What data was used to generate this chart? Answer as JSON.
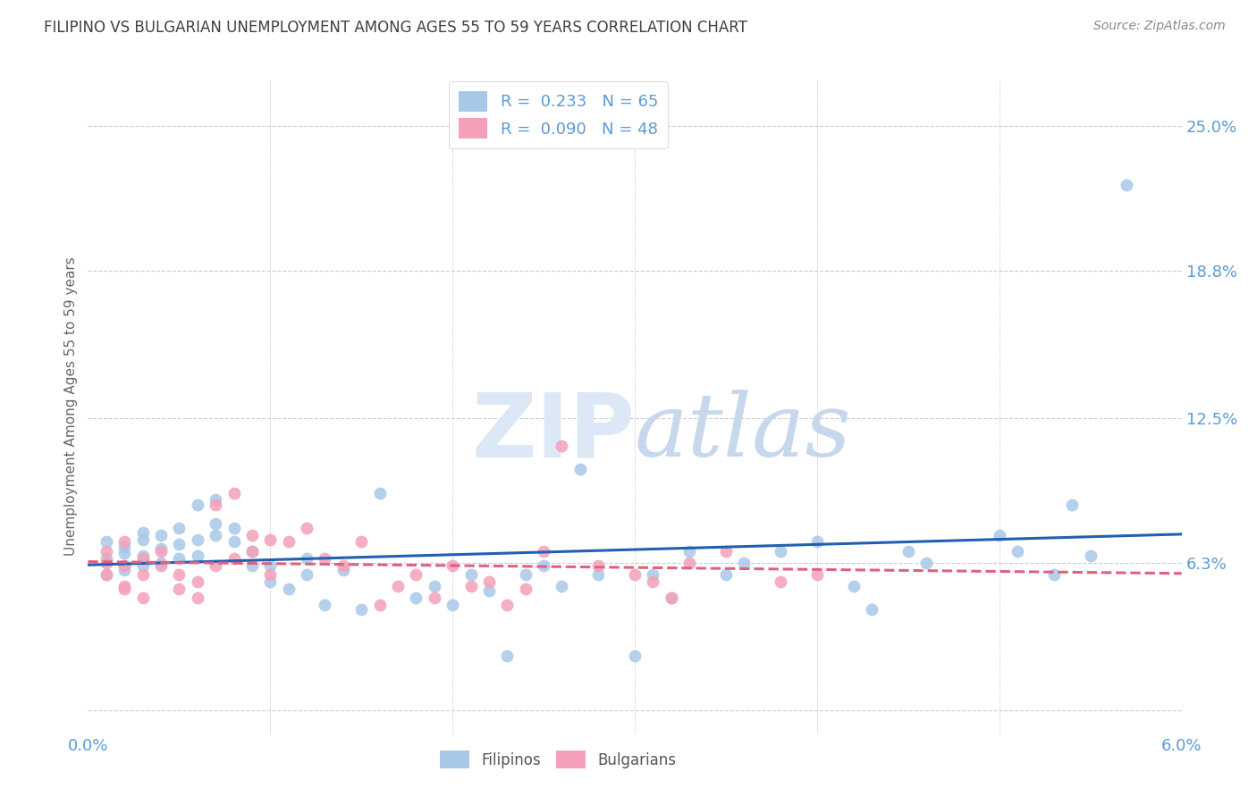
{
  "title": "FILIPINO VS BULGARIAN UNEMPLOYMENT AMONG AGES 55 TO 59 YEARS CORRELATION CHART",
  "source": "Source: ZipAtlas.com",
  "ylabel": "Unemployment Among Ages 55 to 59 years",
  "xmin": 0.0,
  "xmax": 0.06,
  "ymin": -0.01,
  "ymax": 0.27,
  "yticks": [
    0.0,
    0.063,
    0.125,
    0.188,
    0.25
  ],
  "ytick_labels": [
    "",
    "6.3%",
    "12.5%",
    "18.8%",
    "25.0%"
  ],
  "xticks": [
    0.0,
    0.01,
    0.02,
    0.03,
    0.04,
    0.05,
    0.06
  ],
  "xtick_labels": [
    "0.0%",
    "",
    "",
    "",
    "",
    "",
    "6.0%"
  ],
  "filipino_color": "#a8c8e8",
  "bulgarian_color": "#f4a0b8",
  "filipino_line_color": "#2060b0",
  "bulgarian_line_color": "#e06080",
  "r_filipino": 0.233,
  "n_filipino": 65,
  "r_bulgarian": 0.09,
  "n_bulgarian": 48,
  "watermark": "ZIPatlas",
  "watermark_color": "#dce8f5",
  "title_color": "#404040",
  "axis_label_color": "#5b9bd5",
  "grid_color": "#cccccc",
  "filipino_x": [
    0.001,
    0.001,
    0.001,
    0.002,
    0.002,
    0.002,
    0.002,
    0.003,
    0.003,
    0.003,
    0.003,
    0.004,
    0.004,
    0.004,
    0.005,
    0.005,
    0.005,
    0.006,
    0.006,
    0.006,
    0.007,
    0.007,
    0.007,
    0.008,
    0.008,
    0.009,
    0.009,
    0.01,
    0.01,
    0.011,
    0.012,
    0.012,
    0.013,
    0.014,
    0.015,
    0.016,
    0.018,
    0.019,
    0.02,
    0.021,
    0.022,
    0.023,
    0.024,
    0.025,
    0.026,
    0.027,
    0.028,
    0.03,
    0.031,
    0.032,
    0.033,
    0.035,
    0.036,
    0.038,
    0.04,
    0.042,
    0.043,
    0.045,
    0.046,
    0.05,
    0.051,
    0.053,
    0.054,
    0.055,
    0.057
  ],
  "filipino_y": [
    0.058,
    0.065,
    0.072,
    0.06,
    0.067,
    0.062,
    0.07,
    0.062,
    0.066,
    0.073,
    0.076,
    0.063,
    0.069,
    0.075,
    0.065,
    0.071,
    0.078,
    0.066,
    0.073,
    0.088,
    0.075,
    0.08,
    0.09,
    0.078,
    0.072,
    0.062,
    0.068,
    0.055,
    0.062,
    0.052,
    0.058,
    0.065,
    0.045,
    0.06,
    0.043,
    0.093,
    0.048,
    0.053,
    0.045,
    0.058,
    0.051,
    0.023,
    0.058,
    0.062,
    0.053,
    0.103,
    0.058,
    0.023,
    0.058,
    0.048,
    0.068,
    0.058,
    0.063,
    0.068,
    0.072,
    0.053,
    0.043,
    0.068,
    0.063,
    0.075,
    0.068,
    0.058,
    0.088,
    0.066,
    0.225
  ],
  "bulgarian_x": [
    0.001,
    0.001,
    0.001,
    0.002,
    0.002,
    0.002,
    0.002,
    0.003,
    0.003,
    0.003,
    0.004,
    0.004,
    0.005,
    0.005,
    0.006,
    0.006,
    0.007,
    0.007,
    0.008,
    0.008,
    0.009,
    0.009,
    0.01,
    0.01,
    0.011,
    0.012,
    0.013,
    0.014,
    0.015,
    0.016,
    0.017,
    0.018,
    0.019,
    0.02,
    0.021,
    0.022,
    0.023,
    0.024,
    0.025,
    0.026,
    0.028,
    0.03,
    0.031,
    0.032,
    0.033,
    0.035,
    0.038,
    0.04
  ],
  "bulgarian_y": [
    0.058,
    0.063,
    0.068,
    0.053,
    0.062,
    0.072,
    0.052,
    0.048,
    0.058,
    0.065,
    0.062,
    0.068,
    0.052,
    0.058,
    0.048,
    0.055,
    0.088,
    0.062,
    0.065,
    0.093,
    0.068,
    0.075,
    0.058,
    0.073,
    0.072,
    0.078,
    0.065,
    0.062,
    0.072,
    0.045,
    0.053,
    0.058,
    0.048,
    0.062,
    0.053,
    0.055,
    0.045,
    0.052,
    0.068,
    0.113,
    0.062,
    0.058,
    0.055,
    0.048,
    0.063,
    0.068,
    0.055,
    0.058
  ]
}
